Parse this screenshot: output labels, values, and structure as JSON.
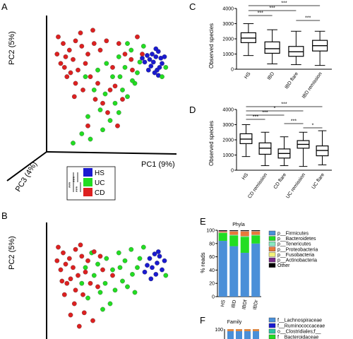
{
  "panels": {
    "A": "A",
    "B": "B",
    "C": "C",
    "D": "D",
    "E": "E",
    "F": "F"
  },
  "colors": {
    "HS": "#1a1ad0",
    "UC": "#22dd22",
    "CD": "#dd2020"
  },
  "chart_data": [
    {
      "id": "A",
      "type": "scatter",
      "title": "",
      "axes": {
        "x": "PC1 (9%)",
        "y": "PC2 (5%)",
        "z": "PC3 (4%)"
      },
      "legend": {
        "entries": [
          "HS",
          "UC",
          "CD"
        ],
        "significance": [
          "***",
          "***",
          "***"
        ]
      },
      "series": [
        {
          "name": "HS",
          "points": [
            [
              0.82,
              0.72
            ],
            [
              0.85,
              0.7
            ],
            [
              0.87,
              0.74
            ],
            [
              0.8,
              0.68
            ],
            [
              0.83,
              0.66
            ],
            [
              0.88,
              0.62
            ],
            [
              0.86,
              0.6
            ],
            [
              0.9,
              0.65
            ],
            [
              0.78,
              0.71
            ],
            [
              0.84,
              0.58
            ],
            [
              0.89,
              0.69
            ],
            [
              0.81,
              0.63
            ],
            [
              0.76,
              0.66
            ],
            [
              0.87,
              0.56
            ],
            [
              0.92,
              0.7
            ],
            [
              0.79,
              0.6
            ],
            [
              0.85,
              0.76
            ],
            [
              0.74,
              0.69
            ]
          ]
        },
        {
          "name": "UC",
          "points": [
            [
              0.55,
              0.7
            ],
            [
              0.6,
              0.62
            ],
            [
              0.65,
              0.75
            ],
            [
              0.7,
              0.58
            ],
            [
              0.5,
              0.55
            ],
            [
              0.45,
              0.65
            ],
            [
              0.58,
              0.45
            ],
            [
              0.62,
              0.4
            ],
            [
              0.4,
              0.3
            ],
            [
              0.48,
              0.22
            ],
            [
              0.52,
              0.35
            ],
            [
              0.35,
              0.45
            ],
            [
              0.3,
              0.25
            ],
            [
              0.42,
              0.15
            ],
            [
              0.55,
              0.28
            ],
            [
              0.68,
              0.5
            ],
            [
              0.72,
              0.66
            ],
            [
              0.66,
              0.52
            ],
            [
              0.38,
              0.6
            ],
            [
              0.28,
              0.55
            ],
            [
              0.44,
              0.42
            ],
            [
              0.56,
              0.55
            ],
            [
              0.62,
              0.8
            ],
            [
              0.75,
              0.78
            ],
            [
              0.25,
              0.12
            ],
            [
              0.18,
              0.05
            ],
            [
              0.9,
              0.55
            ],
            [
              0.93,
              0.62
            ],
            [
              0.32,
              0.08
            ]
          ]
        },
        {
          "name": "CD",
          "points": [
            [
              0.1,
              0.8
            ],
            [
              0.15,
              0.75
            ],
            [
              0.2,
              0.82
            ],
            [
              0.12,
              0.7
            ],
            [
              0.18,
              0.68
            ],
            [
              0.25,
              0.78
            ],
            [
              0.08,
              0.65
            ],
            [
              0.22,
              0.6
            ],
            [
              0.3,
              0.72
            ],
            [
              0.35,
              0.8
            ],
            [
              0.16,
              0.58
            ],
            [
              0.28,
              0.65
            ],
            [
              0.4,
              0.75
            ],
            [
              0.45,
              0.82
            ],
            [
              0.05,
              0.72
            ],
            [
              0.13,
              0.55
            ],
            [
              0.2,
              0.5
            ],
            [
              0.32,
              0.55
            ],
            [
              0.26,
              0.45
            ],
            [
              0.38,
              0.5
            ],
            [
              0.5,
              0.62
            ],
            [
              0.55,
              0.8
            ],
            [
              0.6,
              0.72
            ],
            [
              0.65,
              0.68
            ],
            [
              0.42,
              0.35
            ],
            [
              0.48,
              0.45
            ],
            [
              0.58,
              0.38
            ],
            [
              0.36,
              0.38
            ],
            [
              0.06,
              0.85
            ],
            [
              0.24,
              0.88
            ],
            [
              0.34,
              0.9
            ],
            [
              0.7,
              0.85
            ],
            [
              0.46,
              0.28
            ],
            [
              0.54,
              0.18
            ],
            [
              0.3,
              0.18
            ],
            [
              0.11,
              0.62
            ],
            [
              0.19,
              0.4
            ],
            [
              0.66,
              0.6
            ],
            [
              0.74,
              0.72
            ],
            [
              0.52,
              0.48
            ]
          ]
        }
      ]
    },
    {
      "id": "B",
      "type": "scatter",
      "title": "",
      "axes": {
        "y": "PC2 (5%)"
      },
      "series": [
        {
          "name": "HS",
          "points": [
            [
              0.8,
              0.7
            ],
            [
              0.84,
              0.74
            ],
            [
              0.86,
              0.66
            ],
            [
              0.82,
              0.62
            ],
            [
              0.88,
              0.72
            ],
            [
              0.9,
              0.6
            ],
            [
              0.78,
              0.64
            ],
            [
              0.85,
              0.56
            ],
            [
              0.92,
              0.68
            ],
            [
              0.76,
              0.58
            ],
            [
              0.87,
              0.76
            ],
            [
              0.81,
              0.52
            ]
          ]
        },
        {
          "name": "UC",
          "points": [
            [
              0.55,
              0.75
            ],
            [
              0.6,
              0.68
            ],
            [
              0.65,
              0.78
            ],
            [
              0.7,
              0.62
            ],
            [
              0.5,
              0.6
            ],
            [
              0.45,
              0.7
            ],
            [
              0.58,
              0.5
            ],
            [
              0.62,
              0.45
            ],
            [
              0.4,
              0.4
            ],
            [
              0.48,
              0.3
            ],
            [
              0.52,
              0.42
            ],
            [
              0.35,
              0.55
            ],
            [
              0.3,
              0.35
            ],
            [
              0.72,
              0.7
            ],
            [
              0.66,
              0.56
            ],
            [
              0.38,
              0.65
            ],
            [
              0.28,
              0.62
            ],
            [
              0.44,
              0.48
            ],
            [
              0.56,
              0.62
            ],
            [
              0.75,
              0.8
            ],
            [
              0.68,
              0.4
            ],
            [
              0.33,
              0.75
            ],
            [
              0.93,
              0.55
            ],
            [
              0.42,
              0.25
            ],
            [
              0.25,
              0.48
            ]
          ]
        },
        {
          "name": "CD",
          "points": [
            [
              0.1,
              0.75
            ],
            [
              0.15,
              0.7
            ],
            [
              0.2,
              0.78
            ],
            [
              0.12,
              0.65
            ],
            [
              0.18,
              0.62
            ],
            [
              0.25,
              0.72
            ],
            [
              0.08,
              0.6
            ],
            [
              0.22,
              0.55
            ],
            [
              0.3,
              0.68
            ],
            [
              0.35,
              0.76
            ],
            [
              0.16,
              0.52
            ],
            [
              0.28,
              0.58
            ],
            [
              0.4,
              0.72
            ],
            [
              0.05,
              0.68
            ],
            [
              0.13,
              0.48
            ],
            [
              0.2,
              0.42
            ],
            [
              0.32,
              0.48
            ],
            [
              0.26,
              0.38
            ],
            [
              0.38,
              0.45
            ],
            [
              0.5,
              0.55
            ],
            [
              0.06,
              0.8
            ],
            [
              0.24,
              0.82
            ],
            [
              0.19,
              0.3
            ],
            [
              0.27,
              0.22
            ],
            [
              0.34,
              0.15
            ],
            [
              0.42,
              0.6
            ],
            [
              0.11,
              0.38
            ],
            [
              0.16,
              0.2
            ],
            [
              0.23,
              0.1
            ],
            [
              0.09,
              0.5
            ]
          ]
        }
      ]
    },
    {
      "id": "C",
      "type": "box",
      "title": "",
      "ylabel": "Observed species",
      "ylim": [
        0,
        4000
      ],
      "yticks": [
        "0",
        "1000",
        "2000",
        "3000",
        "4000"
      ],
      "categories": [
        "HS",
        "IBD",
        "IBD flare",
        "IBD remission"
      ],
      "boxes": [
        {
          "min": 900,
          "q1": 1750,
          "median": 2050,
          "q3": 2400,
          "max": 3000
        },
        {
          "min": 350,
          "q1": 1050,
          "median": 1350,
          "q3": 1800,
          "max": 2600
        },
        {
          "min": 300,
          "q1": 850,
          "median": 1150,
          "q3": 1500,
          "max": 2500
        },
        {
          "min": 250,
          "q1": 1200,
          "median": 1550,
          "q3": 1900,
          "max": 2500
        }
      ],
      "significance": [
        {
          "from": 0,
          "to": 3,
          "label": "***"
        },
        {
          "from": 0,
          "to": 2,
          "label": "***"
        },
        {
          "from": 0,
          "to": 1,
          "label": "***"
        },
        {
          "from": 2,
          "to": 3,
          "label": "***"
        }
      ]
    },
    {
      "id": "D",
      "type": "box",
      "title": "",
      "ylabel": "Observed species",
      "ylim": [
        0,
        4000
      ],
      "yticks": [
        "0",
        "1000",
        "2000",
        "3000",
        "4000"
      ],
      "categories": [
        "HS",
        "CD remission",
        "CD flare",
        "UC remission",
        "UC flare"
      ],
      "boxes": [
        {
          "min": 900,
          "q1": 1750,
          "median": 2050,
          "q3": 2400,
          "max": 3000
        },
        {
          "min": 300,
          "q1": 1050,
          "median": 1450,
          "q3": 1800,
          "max": 2500
        },
        {
          "min": 300,
          "q1": 800,
          "median": 1100,
          "q3": 1400,
          "max": 2200
        },
        {
          "min": 250,
          "q1": 1450,
          "median": 1700,
          "q3": 1950,
          "max": 2500
        },
        {
          "min": 350,
          "q1": 950,
          "median": 1300,
          "q3": 1600,
          "max": 2600
        }
      ],
      "significance": [
        {
          "from": 0,
          "to": 4,
          "label": "***"
        },
        {
          "from": 0,
          "to": 3,
          "label": "*"
        },
        {
          "from": 0,
          "to": 2,
          "label": "***"
        },
        {
          "from": 0,
          "to": 1,
          "label": "***"
        },
        {
          "from": 2,
          "to": 3,
          "label": "***"
        },
        {
          "from": 3,
          "to": 4,
          "label": "*"
        }
      ]
    },
    {
      "id": "E",
      "type": "bar",
      "stacked": true,
      "title": "Phyla",
      "ylabel": "% reads",
      "ylim": [
        0,
        100
      ],
      "yticks": [
        "0",
        "20",
        "40",
        "60",
        "80",
        "100"
      ],
      "categories": [
        "HS",
        "IBD",
        "IBDf",
        "IBDr"
      ],
      "series": [
        {
          "name": "p__Firmicutes",
          "color": "#4a8fd8",
          "values": [
            84,
            76,
            66,
            80
          ]
        },
        {
          "name": "p__Bacteroidetes",
          "color": "#22dd22",
          "values": [
            12,
            16,
            24,
            12
          ]
        },
        {
          "name": "p__Tenericutes",
          "color": "#88e8c0",
          "values": [
            0.5,
            1,
            1,
            1
          ]
        },
        {
          "name": "p__Proteobacteria",
          "color": "#e8783a",
          "values": [
            1.5,
            5,
            7,
            5
          ]
        },
        {
          "name": "p__Fusobacteria",
          "color": "#f2f27a",
          "values": [
            0.3,
            0.5,
            0.5,
            0.5
          ]
        },
        {
          "name": "p__Actinobacteria",
          "color": "#7a2a8a",
          "values": [
            0.7,
            0.5,
            0.5,
            0.5
          ]
        },
        {
          "name": "Other",
          "color": "#000000",
          "values": [
            1,
            1,
            1,
            1
          ]
        }
      ]
    },
    {
      "id": "F",
      "type": "bar",
      "stacked": true,
      "title": "Family",
      "ylim": [
        0,
        100
      ],
      "yticks": [
        "100"
      ],
      "legend": [
        {
          "name": "f__Lachnospiraceae",
          "color": "#4a8fd8"
        },
        {
          "name": "f__Ruminococcaceae",
          "color": "#1a1ad0"
        },
        {
          "name": "o__Clostridiales;f__",
          "color": "#2ac8a0"
        },
        {
          "name": "f__Bacteroidaceae",
          "color": "#22dd22"
        }
      ]
    }
  ]
}
